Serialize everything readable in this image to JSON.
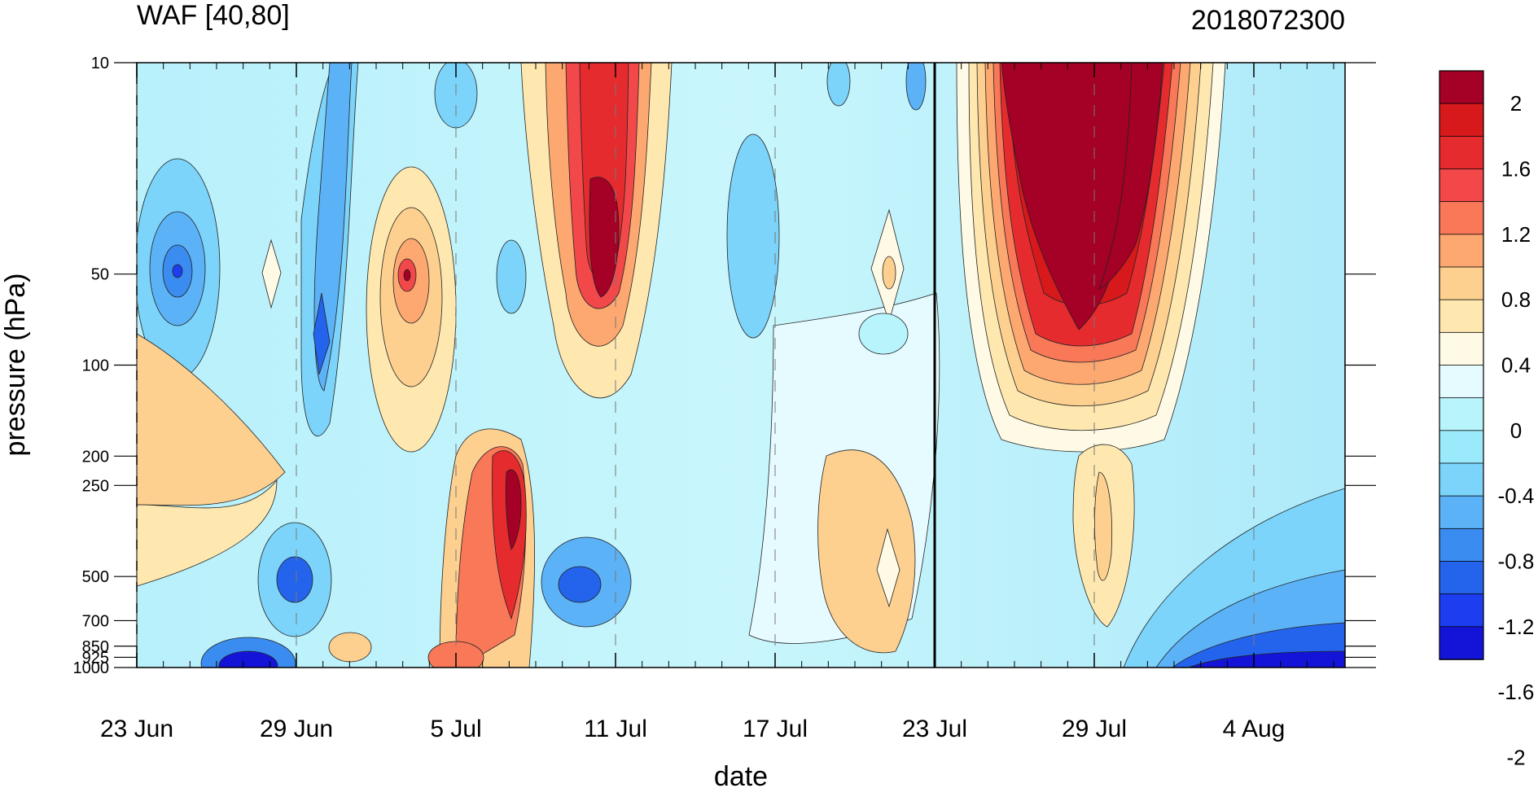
{
  "chart_data": {
    "type": "contour",
    "title_left": "WAF [40,80]",
    "title_right": "2018072300",
    "xlabel": "date",
    "ylabel": "pressure (hPa)",
    "x_tick_labels": [
      "23 Jun",
      "29 Jun",
      "5 Jul",
      "11 Jul",
      "17 Jul",
      "23 Jul",
      "29 Jul",
      "4 Aug"
    ],
    "x_range": [
      "23 Jun",
      "7 Aug"
    ],
    "y_tick_labels": [
      "10",
      "50",
      "100",
      "200",
      "250",
      "500",
      "700",
      "850",
      "925",
      "1000"
    ],
    "y_scale": "log",
    "y_range": [
      1000,
      10
    ],
    "current_date_marker": "23 Jul",
    "colorbar": {
      "labels": [
        "2",
        "1.6",
        "1.2",
        "0.8",
        "0.4",
        "0",
        "-0.4",
        "-0.8",
        "-1.2",
        "-1.6",
        "-2"
      ],
      "colors": [
        "#a50026",
        "#d7191c",
        "#e52b2e",
        "#f2484a",
        "#f87858",
        "#fca870",
        "#fdd090",
        "#fee8b0",
        "#fffae5",
        "#e6fbff",
        "#b8f4fb",
        "#9aeafc",
        "#7cd4fa",
        "#5cb2f7",
        "#3a8cf0",
        "#2464ec",
        "#1c3df0",
        "#1414d8"
      ]
    }
  }
}
